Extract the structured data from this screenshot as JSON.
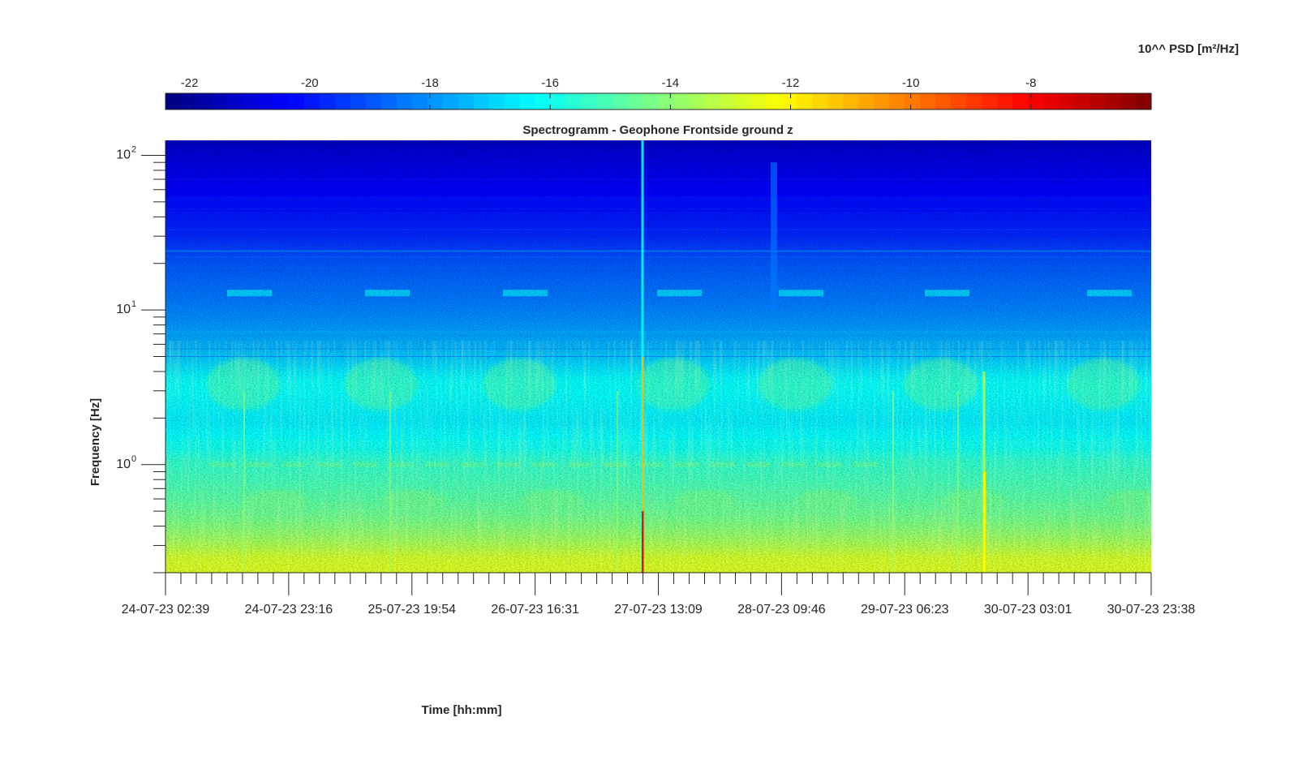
{
  "chart_data": {
    "type": "heatmap",
    "title": "Spectrogramm - Geophone Frontside ground z",
    "xlabel": "Time [hh:mm]",
    "ylabel": "Frequency [Hz]",
    "colorbar": {
      "label": "10^^ PSD [m²/Hz]",
      "position": "top",
      "range": [
        -22.4,
        -6.0
      ],
      "ticks": [
        "-22",
        "-20",
        "-18",
        "-16",
        "-14",
        "-12",
        "-10",
        "-8"
      ],
      "tick_values": [
        -22,
        -20,
        -18,
        -16,
        -14,
        -12,
        -10,
        -8
      ],
      "colormap": "jet",
      "levels": 64
    },
    "x_axis": {
      "type": "datetime",
      "range": [
        "24-07-23 02:39",
        "30-07-23 23:38"
      ],
      "tick_labels": [
        "24-07-23 02:39",
        "24-07-23 23:16",
        "25-07-23 19:54",
        "26-07-23 16:31",
        "27-07-23 13:09",
        "28-07-23 09:46",
        "29-07-23 06:23",
        "30-07-23 03:01",
        "30-07-23 23:38"
      ],
      "minor_ticks_per_interval": 8
    },
    "y_axis": {
      "scale": "log",
      "range": [
        0.2,
        125
      ],
      "tick_values": [
        1,
        10,
        100
      ],
      "tick_exponents": [
        "0",
        "1",
        "2"
      ],
      "tick_base": "10"
    },
    "grid": false,
    "features": [
      {
        "description": "broadband transient spike",
        "time": "27-07-23 ~07:00",
        "psd_exp": -8.2
      },
      {
        "description": "transient",
        "time": "30-07-23 ~00:30",
        "psd_exp": -12.5
      }
    ]
  }
}
